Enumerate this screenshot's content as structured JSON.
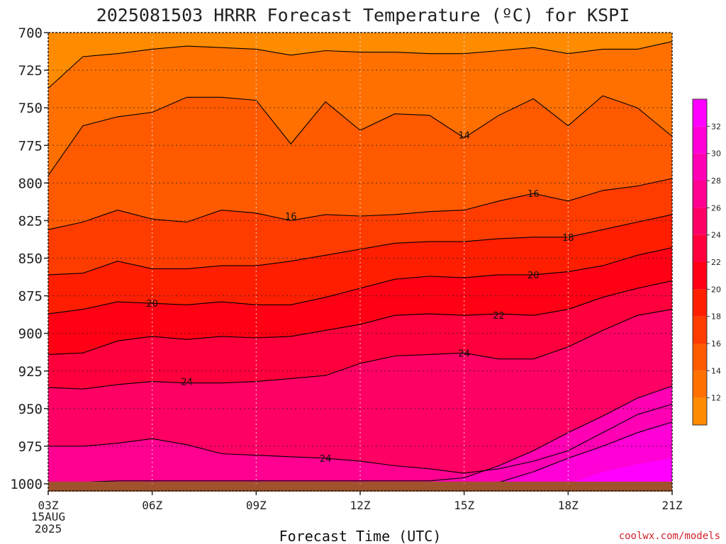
{
  "chart_data": {
    "type": "heatmap",
    "title": "2025081503 HRRR Forecast Temperature (ºC) for KSPI",
    "xlabel": "Forecast Time (UTC)",
    "ylabel": "",
    "x_ticks": [
      "03Z",
      "06Z",
      "09Z",
      "12Z",
      "15Z",
      "18Z",
      "21Z"
    ],
    "x_date_label": [
      "15AUG",
      "2025"
    ],
    "x_hours": [
      3,
      21
    ],
    "y_ticks": [
      700,
      725,
      750,
      775,
      800,
      825,
      850,
      875,
      900,
      925,
      950,
      975,
      1000
    ],
    "ylim": [
      700,
      1000
    ],
    "colorbar": {
      "levels": [
        10,
        12,
        14,
        16,
        18,
        20,
        22,
        24,
        26,
        28,
        30,
        32,
        34
      ],
      "labels": [
        "12",
        "14",
        "16",
        "18",
        "20",
        "22",
        "24",
        "26",
        "28",
        "30",
        "32"
      ],
      "colors": [
        "#ff8c00",
        "#ff7000",
        "#ff5a00",
        "#ff3c00",
        "#ff1e00",
        "#ff0014",
        "#ff003c",
        "#ff0064",
        "#ff0090",
        "#ff00b4",
        "#ff00d6",
        "#ff00ff"
      ]
    },
    "hours": [
      3,
      4,
      5,
      6,
      7,
      8,
      9,
      10,
      11,
      12,
      13,
      14,
      15,
      16,
      17,
      18,
      19,
      20,
      21
    ],
    "isotherms": [
      {
        "level": 12,
        "pressure": [
          737,
          716,
          714,
          711,
          709,
          710,
          711,
          715,
          712,
          713,
          713,
          714,
          714,
          712,
          710,
          714,
          711,
          711,
          706
        ]
      },
      {
        "level": 14,
        "pressure": [
          795,
          762,
          756,
          753,
          743,
          743,
          745,
          774,
          746,
          765,
          754,
          755,
          770,
          755,
          744,
          762,
          742,
          750,
          769
        ]
      },
      {
        "level": 16,
        "pressure": [
          831,
          826,
          818,
          824,
          826,
          818,
          820,
          825,
          821,
          822,
          821,
          819,
          818,
          812,
          807,
          812,
          805,
          802,
          797
        ]
      },
      {
        "level": 18,
        "pressure": [
          861,
          860,
          852,
          857,
          857,
          855,
          855,
          852,
          848,
          844,
          840,
          839,
          839,
          837,
          836,
          836,
          831,
          826,
          821
        ]
      },
      {
        "level": 20,
        "pressure": [
          887,
          884,
          879,
          880,
          881,
          879,
          881,
          881,
          876,
          870,
          864,
          862,
          863,
          861,
          861,
          859,
          855,
          848,
          843
        ]
      },
      {
        "level": 22,
        "pressure": [
          914,
          913,
          905,
          902,
          904,
          902,
          903,
          902,
          898,
          894,
          888,
          887,
          888,
          887,
          888,
          884,
          876,
          870,
          865
        ]
      },
      {
        "level": 24,
        "pressure": [
          936,
          937,
          934,
          932,
          933,
          933,
          932,
          930,
          928,
          920,
          915,
          914,
          913,
          917,
          917,
          909,
          898,
          888,
          884
        ]
      }
    ],
    "isotherm_labels": [
      "14",
      "16",
      "16",
      "18",
      "20",
      "20",
      "22",
      "24",
      "24",
      "24"
    ]
  },
  "credit": "coolwx.com/models"
}
